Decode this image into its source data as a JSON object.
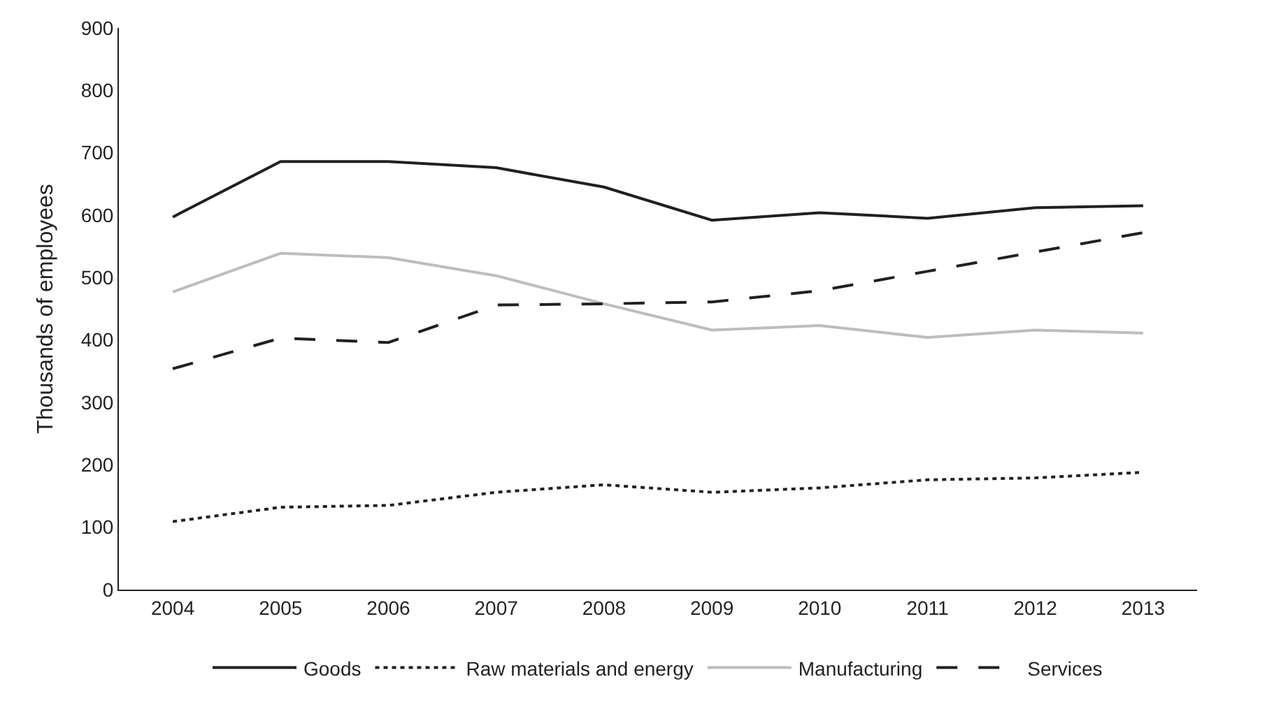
{
  "chart_data": {
    "type": "line",
    "ylabel": "Thousands of employees",
    "categories": [
      "2004",
      "2005",
      "2006",
      "2007",
      "2008",
      "2009",
      "2010",
      "2011",
      "2012",
      "2013"
    ],
    "series": [
      {
        "name": "Goods",
        "color": "#231f20",
        "line_style": "solid",
        "values": [
          597,
          686,
          686,
          676,
          645,
          592,
          604,
          595,
          612,
          615
        ]
      },
      {
        "name": "Raw materials and energy",
        "color": "#231f20",
        "line_style": "dotted",
        "values": [
          109,
          132,
          135,
          156,
          168,
          156,
          163,
          176,
          179,
          188
        ]
      },
      {
        "name": "Manufacturing",
        "color": "#bcbdc0",
        "line_style": "solid",
        "values": [
          477,
          539,
          532,
          503,
          458,
          416,
          423,
          404,
          416,
          411
        ]
      },
      {
        "name": "Services",
        "color": "#231f20",
        "line_style": "dashed",
        "values": [
          354,
          403,
          396,
          456,
          458,
          461,
          479,
          510,
          541,
          572
        ]
      }
    ],
    "ylim": [
      0,
      900
    ],
    "yticks": [
      0,
      100,
      200,
      300,
      400,
      500,
      600,
      700,
      800,
      900
    ],
    "legend": "bottom",
    "marker": "none"
  }
}
